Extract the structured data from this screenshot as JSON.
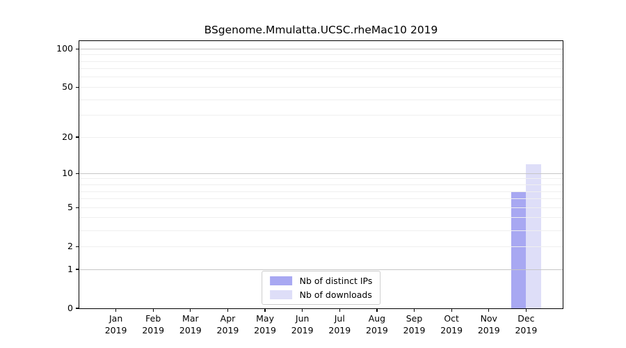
{
  "chart_data": {
    "type": "bar",
    "title": "BSgenome.Mmulatta.UCSC.rheMac10 2019",
    "categories": [
      "Jan",
      "Feb",
      "Mar",
      "Apr",
      "May",
      "Jun",
      "Jul",
      "Aug",
      "Sep",
      "Oct",
      "Nov",
      "Dec"
    ],
    "year": "2019",
    "series": [
      {
        "name": "Nb of distinct IPs",
        "color": "#a8a8f2",
        "values": [
          0,
          0,
          0,
          0,
          0,
          0,
          0,
          0,
          0,
          0,
          0,
          7
        ]
      },
      {
        "name": "Nb of downloads",
        "color": "#dedef8",
        "values": [
          0,
          0,
          0,
          0,
          0,
          0,
          0,
          0,
          0,
          0,
          0,
          12
        ]
      }
    ],
    "yscale": "log1p",
    "yticks": [
      0,
      1,
      2,
      5,
      10,
      20,
      50,
      100
    ],
    "ylim": [
      0,
      115
    ],
    "grid_major": [
      1,
      10,
      100
    ],
    "grid_minor": [
      2,
      3,
      4,
      5,
      6,
      7,
      8,
      9,
      20,
      30,
      40,
      50,
      60,
      70,
      80,
      90
    ],
    "grid": true,
    "legend_position": "lower center"
  },
  "colors": {
    "major_grid": "#c6c6c6",
    "minor_grid": "#efefef",
    "axis": "#000000",
    "legend_border": "#cccccc",
    "background": "#ffffff"
  }
}
